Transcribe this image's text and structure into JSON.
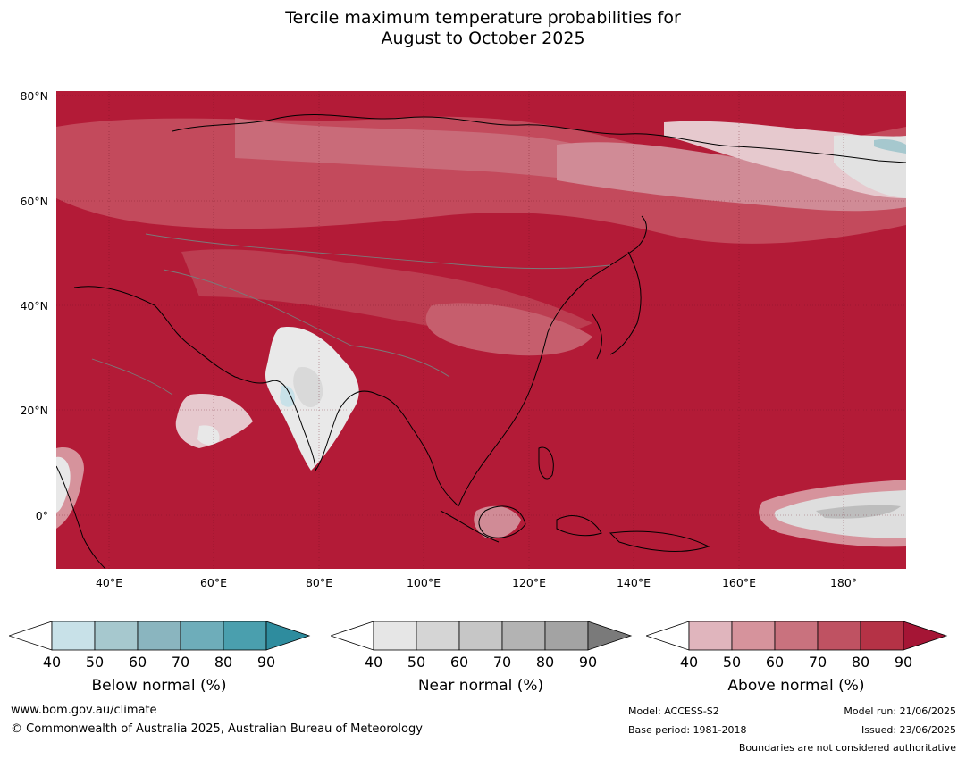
{
  "title_line1": "Tercile maximum temperature probabilities for",
  "title_line2": "August to October 2025",
  "lat_labels": [
    "80°N",
    "60°N",
    "40°N",
    "20°N",
    "0°"
  ],
  "lon_labels": [
    "40°E",
    "60°E",
    "80°E",
    "100°E",
    "120°E",
    "140°E",
    "160°E",
    "180°"
  ],
  "colorbars": [
    {
      "label": "Below normal (%)",
      "ticks": [
        "40",
        "50",
        "60",
        "70",
        "80",
        "90"
      ],
      "colors": [
        "#ffffff",
        "#c8e1e8",
        "#a6c8ce",
        "#8ab5bf",
        "#6eadba",
        "#4a9fae",
        "#2e8c9e"
      ]
    },
    {
      "label": "Near normal (%)",
      "ticks": [
        "40",
        "50",
        "60",
        "70",
        "80",
        "90"
      ],
      "colors": [
        "#ffffff",
        "#e6e6e6",
        "#d5d5d5",
        "#c6c6c6",
        "#b3b3b3",
        "#a3a3a3",
        "#7a7a7a"
      ]
    },
    {
      "label": "Above normal (%)",
      "ticks": [
        "40",
        "50",
        "60",
        "70",
        "80",
        "90"
      ],
      "colors": [
        "#ffffff",
        "#e0b5bd",
        "#d6939c",
        "#c9727e",
        "#bf5262",
        "#b53246",
        "#a51535"
      ]
    }
  ],
  "footer": {
    "website": "www.bom.gov.au/climate",
    "copyright": "© Commonwealth of Australia 2025, Australian Bureau of Meteorology",
    "model": "Model: ACCESS-S2",
    "base_period": "Base period: 1981-2018",
    "model_run": "Model run: 21/06/2025",
    "issued": "Issued: 23/06/2025",
    "disclaimer": "Boundaries are not considered authoritative"
  }
}
